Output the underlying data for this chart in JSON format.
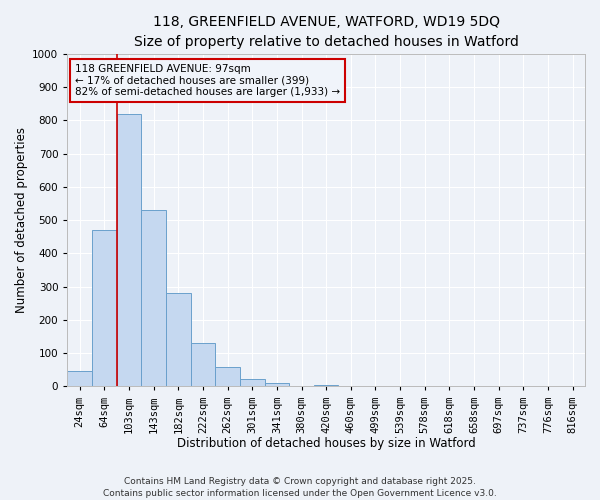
{
  "title_line1": "118, GREENFIELD AVENUE, WATFORD, WD19 5DQ",
  "title_line2": "Size of property relative to detached houses in Watford",
  "xlabel": "Distribution of detached houses by size in Watford",
  "ylabel": "Number of detached properties",
  "bar_labels": [
    "24sqm",
    "64sqm",
    "103sqm",
    "143sqm",
    "182sqm",
    "222sqm",
    "262sqm",
    "301sqm",
    "341sqm",
    "380sqm",
    "420sqm",
    "460sqm",
    "499sqm",
    "539sqm",
    "578sqm",
    "618sqm",
    "658sqm",
    "697sqm",
    "737sqm",
    "776sqm",
    "816sqm"
  ],
  "bar_heights": [
    46,
    470,
    820,
    530,
    280,
    130,
    58,
    22,
    11,
    0,
    5,
    0,
    0,
    0,
    0,
    0,
    0,
    0,
    0,
    0,
    0
  ],
  "bar_color": "#c5d8f0",
  "bar_edge_color": "#6aa0cc",
  "ylim": [
    0,
    1000
  ],
  "yticks": [
    0,
    100,
    200,
    300,
    400,
    500,
    600,
    700,
    800,
    900,
    1000
  ],
  "vline_x_index": 1.5,
  "vline_color": "#cc0000",
  "annotation_box_text": "118 GREENFIELD AVENUE: 97sqm\n← 17% of detached houses are smaller (399)\n82% of semi-detached houses are larger (1,933) →",
  "annotation_box_facecolor": "#f0f4fa",
  "annotation_box_edgecolor": "#cc0000",
  "footer_line1": "Contains HM Land Registry data © Crown copyright and database right 2025.",
  "footer_line2": "Contains public sector information licensed under the Open Government Licence v3.0.",
  "background_color": "#eef2f8",
  "grid_color": "#ffffff",
  "title_fontsize": 10,
  "subtitle_fontsize": 9,
  "axis_label_fontsize": 8.5,
  "tick_fontsize": 7.5,
  "annotation_fontsize": 7.5,
  "footer_fontsize": 6.5
}
